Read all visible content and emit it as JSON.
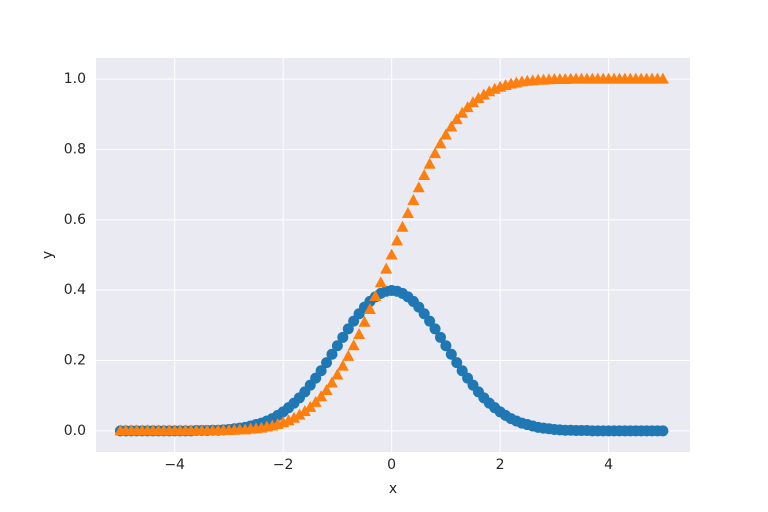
{
  "chart_data": {
    "type": "scatter",
    "xlabel": "x",
    "ylabel": "y",
    "x": [
      -5,
      -4.9,
      -4.8,
      -4.7,
      -4.6,
      -4.5,
      -4.4,
      -4.3,
      -4.2,
      -4.1,
      -4,
      -3.9,
      -3.8,
      -3.7,
      -3.6,
      -3.5,
      -3.4,
      -3.3,
      -3.2,
      -3.1,
      -3,
      -2.9,
      -2.8,
      -2.7,
      -2.6,
      -2.5,
      -2.4,
      -2.3,
      -2.2,
      -2.1,
      -2,
      -1.9,
      -1.8,
      -1.7,
      -1.6,
      -1.5,
      -1.4,
      -1.3,
      -1.2,
      -1.1,
      -1,
      -0.9,
      -0.8,
      -0.7,
      -0.6,
      -0.5,
      -0.4,
      -0.3,
      -0.2,
      -0.1,
      0,
      0.1,
      0.2,
      0.3,
      0.4,
      0.5,
      0.6,
      0.7,
      0.8,
      0.9,
      1,
      1.1,
      1.2,
      1.3,
      1.4,
      1.5,
      1.6,
      1.7,
      1.8,
      1.9,
      2,
      2.1,
      2.2,
      2.3,
      2.4,
      2.5,
      2.6,
      2.7,
      2.8,
      2.9,
      3,
      3.1,
      3.2,
      3.3,
      3.4,
      3.5,
      3.6,
      3.7,
      3.8,
      3.9,
      4,
      4.1,
      4.2,
      4.3,
      4.4,
      4.5,
      4.6,
      4.7,
      4.8,
      4.9,
      5
    ],
    "series": [
      {
        "color": "#1f77b4",
        "marker": "circle",
        "values": [
          0,
          0,
          0,
          0,
          0,
          0,
          0,
          0,
          0,
          0,
          0,
          0,
          0,
          0,
          0.001,
          0.001,
          0.001,
          0.002,
          0.002,
          0.003,
          0.004,
          0.006,
          0.008,
          0.01,
          0.014,
          0.018,
          0.022,
          0.028,
          0.035,
          0.044,
          0.054,
          0.066,
          0.079,
          0.094,
          0.111,
          0.13,
          0.15,
          0.171,
          0.194,
          0.218,
          0.242,
          0.266,
          0.29,
          0.312,
          0.333,
          0.352,
          0.368,
          0.381,
          0.391,
          0.397,
          0.399,
          0.397,
          0.391,
          0.381,
          0.368,
          0.352,
          0.333,
          0.312,
          0.29,
          0.266,
          0.242,
          0.218,
          0.194,
          0.171,
          0.15,
          0.13,
          0.111,
          0.094,
          0.079,
          0.066,
          0.054,
          0.044,
          0.035,
          0.028,
          0.022,
          0.018,
          0.014,
          0.01,
          0.008,
          0.006,
          0.004,
          0.003,
          0.002,
          0.002,
          0.001,
          0.001,
          0.001,
          0,
          0,
          0,
          0,
          0,
          0,
          0,
          0,
          0,
          0,
          0,
          0,
          0,
          0
        ]
      },
      {
        "color": "#ff7f0e",
        "marker": "triangle",
        "values": [
          0,
          0,
          0,
          0,
          0,
          0,
          0,
          0,
          0,
          0,
          0,
          0,
          0,
          0,
          0,
          0,
          0,
          0,
          0.001,
          0.001,
          0.001,
          0.002,
          0.003,
          0.003,
          0.005,
          0.006,
          0.008,
          0.011,
          0.014,
          0.018,
          0.023,
          0.029,
          0.036,
          0.045,
          0.055,
          0.067,
          0.081,
          0.097,
          0.115,
          0.136,
          0.159,
          0.184,
          0.212,
          0.242,
          0.274,
          0.309,
          0.345,
          0.382,
          0.421,
          0.46,
          0.5,
          0.54,
          0.579,
          0.618,
          0.655,
          0.691,
          0.726,
          0.758,
          0.788,
          0.816,
          0.841,
          0.864,
          0.885,
          0.903,
          0.919,
          0.933,
          0.945,
          0.955,
          0.964,
          0.971,
          0.977,
          0.982,
          0.986,
          0.989,
          0.992,
          0.994,
          0.995,
          0.997,
          0.997,
          0.998,
          0.999,
          0.999,
          0.999,
          1,
          1,
          1,
          1,
          1,
          1,
          1,
          1,
          1,
          1,
          1,
          1,
          1,
          1,
          1,
          1,
          1,
          1
        ]
      }
    ],
    "xlim": [
      -5.45,
      5.5
    ],
    "ylim": [
      -0.06,
      1.06
    ],
    "xticks": [
      {
        "value": -4,
        "label": "−4"
      },
      {
        "value": -2,
        "label": "−2"
      },
      0,
      2,
      4
    ],
    "yticks": [
      {
        "value": 0,
        "label": "0.0"
      },
      {
        "value": 0.2,
        "label": "0.2"
      },
      {
        "value": 0.4,
        "label": "0.4"
      },
      {
        "value": 0.6,
        "label": "0.6"
      },
      {
        "value": 0.8,
        "label": "0.8"
      },
      {
        "value": 1,
        "label": "1.0"
      }
    ],
    "grid": true
  }
}
